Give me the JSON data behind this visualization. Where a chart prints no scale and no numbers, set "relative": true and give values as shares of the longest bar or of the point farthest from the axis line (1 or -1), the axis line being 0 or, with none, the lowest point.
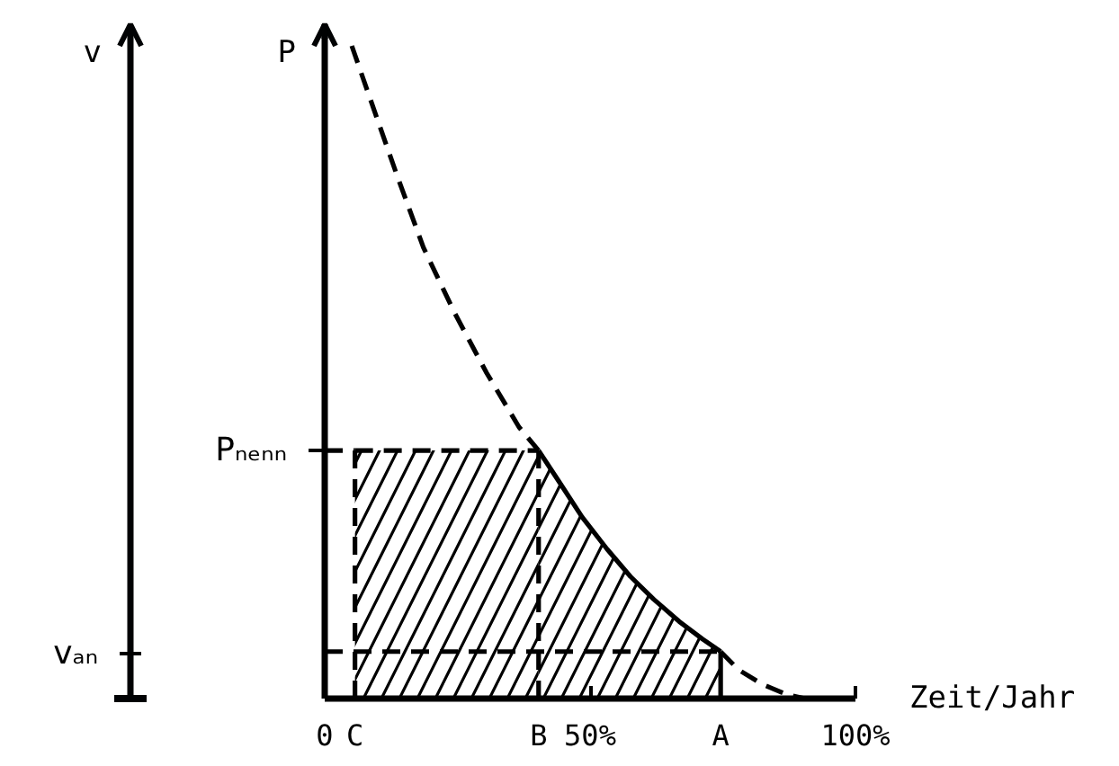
{
  "chart_data": {
    "type": "line",
    "relative": true,
    "xlabel": "Zeit/Jahr",
    "ylabel": "P",
    "xlim": [
      0,
      100
    ],
    "xticks": [
      0,
      {
        "value": 5.7,
        "label": "C"
      },
      {
        "value": 40.3,
        "label": "B"
      },
      {
        "value": 50,
        "label": "50%"
      },
      {
        "value": 74.6,
        "label": "A"
      },
      {
        "value": 100,
        "label": "100%"
      }
    ],
    "annotations": [
      {
        "text": "Pₙₑₙₙ",
        "x": 0,
        "y": 0.38
      },
      "v",
      "vₐₙ"
    ],
    "series": [
      {
        "color": "#000000",
        "line_style": "dashed",
        "x": [
          5.1,
          9.2,
          13.6,
          18.6,
          24.4,
          30.5,
          36.6,
          40.3
        ],
        "values": [
          1,
          0.904,
          0.802,
          0.691,
          0.592,
          0.499,
          0.416,
          0.38
        ]
      },
      {
        "type": "area",
        "color": "#000000",
        "line_style": "solid",
        "x": [
          40.3,
          44.1,
          48.5,
          53.2,
          57.6,
          62,
          66.8,
          71.2,
          74.6
        ],
        "values": [
          0.38,
          0.333,
          0.278,
          0.229,
          0.187,
          0.152,
          0.118,
          0.091,
          0.072
        ]
      },
      {
        "color": "#000000",
        "line_style": "dashed",
        "x": [
          74.6,
          78,
          82.4,
          87.1,
          90.5
        ],
        "values": [
          0.072,
          0.044,
          0.022,
          0.006,
          0
        ]
      },
      {
        "type": "area",
        "color": "#000000",
        "line_style": "dashed",
        "x": [
          5.7,
          40.3
        ],
        "values": [
          0.38,
          0.38
        ]
      },
      {
        "color": "#000000",
        "line_style": "dashed",
        "x": [
          0,
          5.7
        ],
        "values": [
          0.38,
          0.38
        ]
      },
      {
        "color": "#000000",
        "line_style": "dashed",
        "x": [
          5.7,
          5.7
        ],
        "values": [
          0,
          0.38
        ]
      },
      {
        "color": "#000000",
        "line_style": "dashed",
        "x": [
          40.3,
          40.3
        ],
        "values": [
          0,
          0.38
        ]
      },
      {
        "color": "#000000",
        "line_style": "dashed",
        "x": [
          0,
          74.6
        ],
        "values": [
          0.072,
          0.072
        ]
      },
      {
        "color": "#000000",
        "line_style": "solid",
        "x": [
          74.6,
          74.6
        ],
        "values": [
          0,
          0.072
        ]
      }
    ]
  }
}
